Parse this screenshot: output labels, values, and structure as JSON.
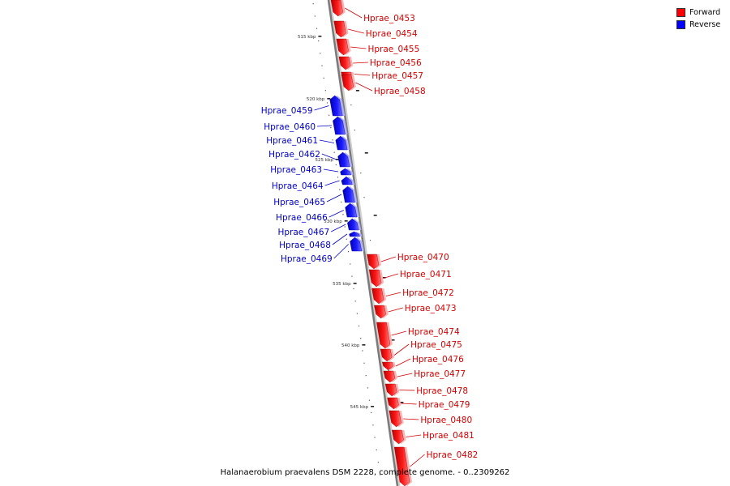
{
  "caption": "Halanaerobium praevalens DSM 2228, complete genome. - 0..2309262",
  "legend": {
    "forward": {
      "label": "Forward",
      "color": "#ff0000"
    },
    "reverse": {
      "label": "Reverse",
      "color": "#0000ff"
    }
  },
  "scale_labels": [
    "515 kbp",
    "520 kbp",
    "525 kbp",
    "530 kbp",
    "535 kbp",
    "540 kbp",
    "545 kbp"
  ],
  "genes": [
    {
      "name": "Hprae_0453",
      "strand": "forward"
    },
    {
      "name": "Hprae_0454",
      "strand": "forward"
    },
    {
      "name": "Hprae_0455",
      "strand": "forward"
    },
    {
      "name": "Hprae_0456",
      "strand": "forward"
    },
    {
      "name": "Hprae_0457",
      "strand": "forward"
    },
    {
      "name": "Hprae_0458",
      "strand": "forward"
    },
    {
      "name": "Hprae_0459",
      "strand": "reverse"
    },
    {
      "name": "Hprae_0460",
      "strand": "reverse"
    },
    {
      "name": "Hprae_0461",
      "strand": "reverse"
    },
    {
      "name": "Hprae_0462",
      "strand": "reverse"
    },
    {
      "name": "Hprae_0463",
      "strand": "reverse"
    },
    {
      "name": "Hprae_0464",
      "strand": "reverse"
    },
    {
      "name": "Hprae_0465",
      "strand": "reverse"
    },
    {
      "name": "Hprae_0466",
      "strand": "reverse"
    },
    {
      "name": "Hprae_0467",
      "strand": "reverse"
    },
    {
      "name": "Hprae_0468",
      "strand": "reverse"
    },
    {
      "name": "Hprae_0469",
      "strand": "reverse"
    },
    {
      "name": "Hprae_0470",
      "strand": "forward"
    },
    {
      "name": "Hprae_0471",
      "strand": "forward"
    },
    {
      "name": "Hprae_0472",
      "strand": "forward"
    },
    {
      "name": "Hprae_0473",
      "strand": "forward"
    },
    {
      "name": "Hprae_0474",
      "strand": "forward"
    },
    {
      "name": "Hprae_0475",
      "strand": "forward"
    },
    {
      "name": "Hprae_0476",
      "strand": "forward"
    },
    {
      "name": "Hprae_0477",
      "strand": "forward"
    },
    {
      "name": "Hprae_0478",
      "strand": "forward"
    },
    {
      "name": "Hprae_0479",
      "strand": "forward"
    },
    {
      "name": "Hprae_0480",
      "strand": "forward"
    },
    {
      "name": "Hprae_0481",
      "strand": "forward"
    },
    {
      "name": "Hprae_0482",
      "strand": "forward"
    }
  ]
}
